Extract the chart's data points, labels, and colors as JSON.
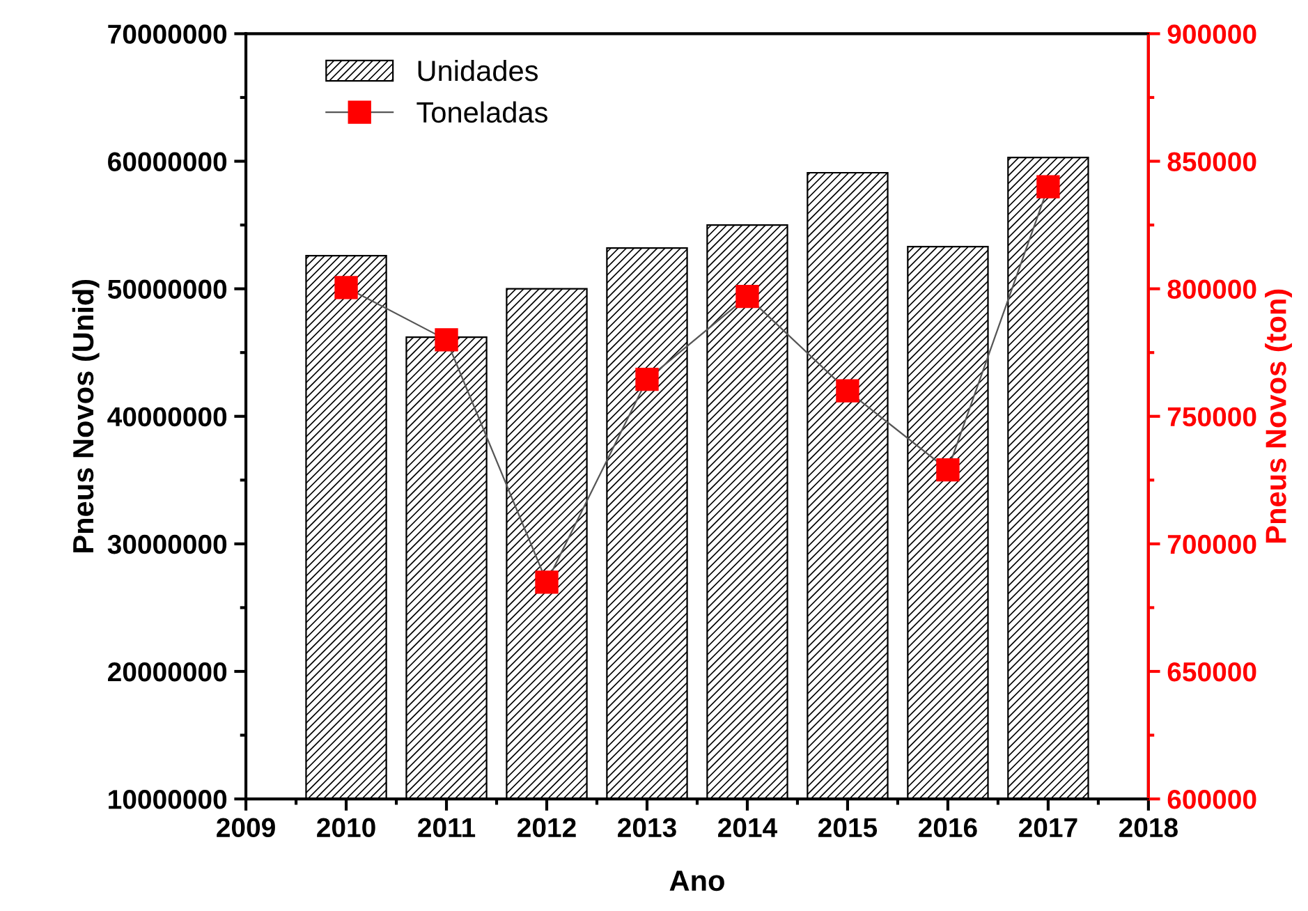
{
  "chart_data": {
    "type": "bar",
    "xlabel": "Ano",
    "ylabel": "Pneus Novos (Unid)",
    "y2label": "Pneus Novos (ton)",
    "x": [
      2010,
      2011,
      2012,
      2013,
      2014,
      2015,
      2016,
      2017
    ],
    "series": [
      {
        "name": "Unidades",
        "color": "#000000",
        "values": [
          52600000,
          46200000,
          50000000,
          53200000,
          55000000,
          59100000,
          53300000,
          60300000
        ]
      },
      {
        "name": "Toneladas",
        "type": "line",
        "axis": "y2",
        "color": "#ff0000",
        "marker": "square",
        "values": [
          800500,
          780000,
          685000,
          764500,
          797000,
          760000,
          729000,
          840000
        ]
      }
    ],
    "xlim": [
      2009,
      2018
    ],
    "xticks": [
      2009,
      2010,
      2011,
      2012,
      2013,
      2014,
      2015,
      2016,
      2017,
      2018
    ],
    "ylim": [
      10000000,
      70000000
    ],
    "yticks": [
      10000000,
      20000000,
      30000000,
      40000000,
      50000000,
      60000000,
      70000000
    ],
    "y2lim": [
      600000,
      900000
    ],
    "y2ticks": [
      600000,
      650000,
      700000,
      750000,
      800000,
      850000,
      900000
    ],
    "legend": "top left",
    "grid": false
  }
}
